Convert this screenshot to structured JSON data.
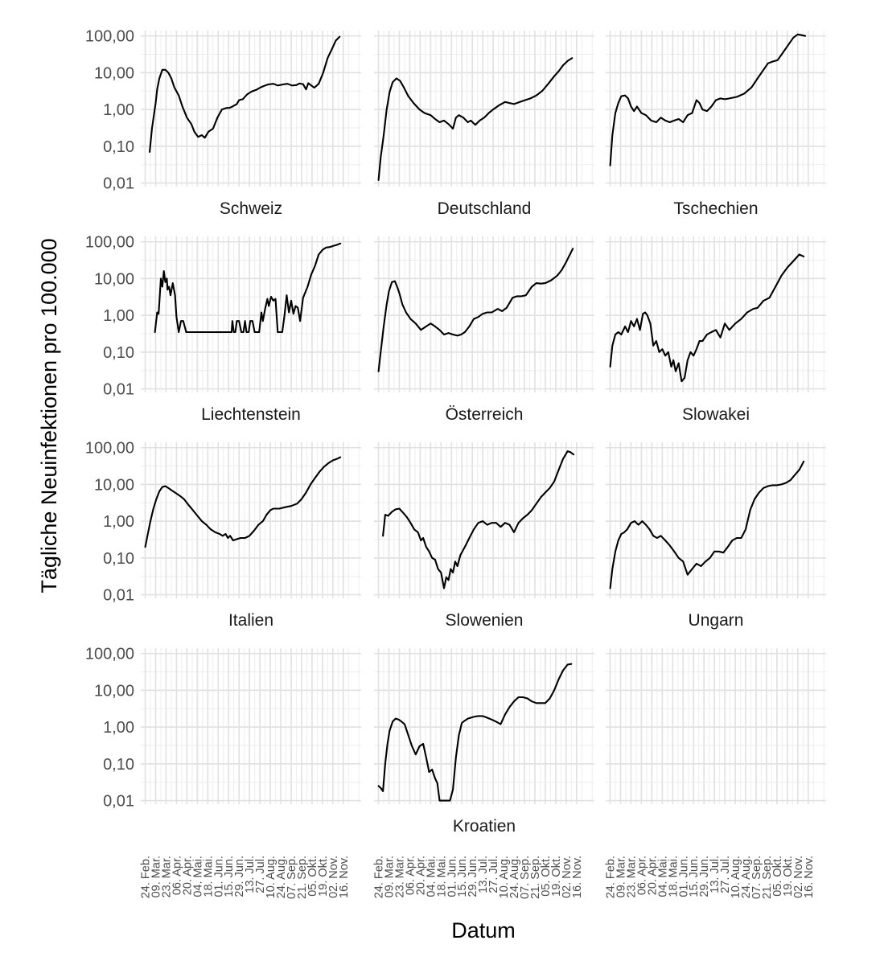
{
  "chart_data": {
    "type": "line",
    "facet_layout": "3 columns x 4 rows, facet labels below each panel",
    "ylabel": "Tägliche Neuinfektionen pro 100.000",
    "xlabel": "Datum",
    "y_scale": "log10",
    "ylim": [
      0.008,
      140
    ],
    "y_ticks": [
      0.01,
      0.1,
      1,
      10,
      100
    ],
    "y_tick_labels": [
      "0,01",
      "0,10",
      "1,00",
      "10,00",
      "100,00"
    ],
    "x_range_days": [
      -6,
      290
    ],
    "x_ticks_days": [
      0,
      14,
      28,
      42,
      56,
      70,
      84,
      98,
      112,
      126,
      140,
      154,
      168,
      182,
      196,
      210,
      224,
      238,
      252,
      266
    ],
    "x_tick_labels": [
      "24. Feb.",
      "09. Mar.",
      "23. Mar.",
      "06. Apr.",
      "20. Apr.",
      "04. Mai.",
      "18. Mai.",
      "01. Jun.",
      "15. Jun.",
      "29. Jun.",
      "13. Jul.",
      "27. Jul.",
      "10. Aug.",
      "24. Aug.",
      "07. Sep.",
      "21. Sep.",
      "05. Okt.",
      "19. Okt.",
      "02. Nov.",
      "16. Nov."
    ],
    "x_note": "x values are days since 24. Feb.",
    "grid": true,
    "series": [
      {
        "name": "Schweiz",
        "x": [
          6,
          9,
          12,
          14,
          16,
          19,
          23,
          27,
          31,
          35,
          39,
          45,
          50,
          56,
          62,
          66,
          71,
          76,
          80,
          85,
          91,
          97,
          103,
          109,
          113,
          117,
          123,
          126,
          131,
          137,
          143,
          149,
          155,
          160,
          165,
          172,
          178,
          185,
          191,
          197,
          203,
          207,
          212,
          216,
          219,
          223,
          227,
          233,
          239,
          245,
          251,
          256,
          261
        ],
        "y": [
          0.07,
          0.3,
          0.8,
          1.5,
          3.5,
          7,
          12,
          12,
          10,
          7,
          4,
          2.4,
          1.2,
          0.6,
          0.4,
          0.25,
          0.18,
          0.2,
          0.17,
          0.25,
          0.3,
          0.6,
          1,
          1.1,
          1.1,
          1.2,
          1.4,
          1.8,
          1.9,
          2.6,
          3.1,
          3.4,
          4,
          4.4,
          4.8,
          5,
          4.5,
          4.8,
          5,
          4.5,
          4.6,
          5.1,
          4.9,
          3.5,
          5.2,
          4.5,
          3.9,
          5,
          10,
          25,
          45,
          75,
          95
        ]
      },
      {
        "name": "Deutschland",
        "x": [
          0,
          3,
          7,
          11,
          15,
          19,
          24,
          29,
          34,
          40,
          47,
          55,
          62,
          70,
          76,
          82,
          88,
          94,
          100,
          104,
          108,
          114,
          120,
          124,
          130,
          136,
          142,
          148,
          154,
          162,
          170,
          176,
          182,
          190,
          197,
          204,
          212,
          220,
          228,
          236,
          242,
          248,
          254,
          260
        ],
        "y": [
          0.012,
          0.05,
          0.2,
          1,
          3,
          5.5,
          7,
          6,
          4,
          2.3,
          1.5,
          1,
          0.8,
          0.7,
          0.55,
          0.45,
          0.5,
          0.4,
          0.3,
          0.6,
          0.7,
          0.6,
          0.45,
          0.5,
          0.38,
          0.5,
          0.6,
          0.8,
          1,
          1.3,
          1.6,
          1.5,
          1.4,
          1.6,
          1.8,
          2,
          2.4,
          3.2,
          5,
          8,
          11,
          16,
          21,
          25
        ]
      },
      {
        "name": "Tschechien",
        "x": [
          0,
          3,
          7,
          11,
          15,
          20,
          24,
          28,
          32,
          36,
          42,
          48,
          55,
          62,
          68,
          74,
          80,
          86,
          92,
          98,
          104,
          110,
          116,
          120,
          124,
          130,
          136,
          142,
          148,
          154,
          160,
          170,
          180,
          190,
          198,
          206,
          212,
          218,
          225,
          232,
          240,
          246,
          252,
          257,
          262
        ],
        "y": [
          0.03,
          0.2,
          0.8,
          1.5,
          2.3,
          2.4,
          2,
          1.2,
          0.9,
          1.2,
          0.8,
          0.7,
          0.5,
          0.45,
          0.6,
          0.5,
          0.45,
          0.5,
          0.55,
          0.45,
          0.7,
          0.8,
          1.8,
          1.5,
          1,
          0.9,
          1.2,
          1.8,
          2,
          1.9,
          2,
          2.2,
          2.7,
          4,
          7,
          12,
          18,
          20,
          22,
          35,
          60,
          90,
          110,
          105,
          100
        ]
      },
      {
        "name": "Liechtenstein",
        "x": [
          13,
          16,
          18,
          21,
          23,
          25,
          27,
          29,
          30,
          32,
          34,
          37,
          40,
          42,
          45,
          48,
          51,
          55,
          58,
          62,
          66,
          70,
          80,
          90,
          100,
          110,
          116,
          117,
          119,
          121,
          123,
          126,
          129,
          132,
          134,
          136,
          139,
          141,
          144,
          147,
          150,
          153,
          156,
          158,
          161,
          164,
          166,
          169,
          172,
          175,
          178,
          181,
          184,
          187,
          190,
          193,
          196,
          199,
          202,
          205,
          208,
          212,
          218,
          223,
          228,
          233,
          238,
          243,
          248,
          253,
          257,
          262
        ],
        "y": [
          0.35,
          1.2,
          1.1,
          10,
          6,
          16,
          8,
          10,
          5,
          6,
          3.5,
          7.5,
          3.5,
          0.9,
          0.35,
          0.7,
          0.7,
          0.35,
          0.35,
          0.35,
          0.35,
          0.35,
          0.35,
          0.35,
          0.35,
          0.35,
          0.35,
          0.7,
          0.35,
          0.35,
          0.7,
          0.7,
          0.35,
          0.35,
          0.7,
          0.35,
          0.35,
          0.7,
          0.7,
          0.35,
          0.35,
          0.35,
          1.2,
          0.7,
          1.5,
          2.8,
          1.8,
          3.2,
          2.5,
          2.8,
          0.35,
          0.35,
          0.35,
          1,
          3.5,
          1.2,
          2.5,
          1.1,
          1.8,
          1.6,
          0.7,
          3,
          6,
          13,
          22,
          45,
          60,
          70,
          72,
          78,
          82,
          90
        ]
      },
      {
        "name": "Österreich",
        "x": [
          0,
          3,
          7,
          11,
          14,
          18,
          22,
          25,
          28,
          32,
          37,
          43,
          50,
          57,
          64,
          70,
          76,
          82,
          88,
          94,
          100,
          106,
          111,
          116,
          122,
          128,
          134,
          140,
          146,
          152,
          160,
          166,
          172,
          180,
          186,
          192,
          198,
          206,
          212,
          218,
          224,
          232,
          240,
          246,
          252,
          257,
          261
        ],
        "y": [
          0.03,
          0.1,
          0.5,
          2,
          4.5,
          8,
          8.5,
          6,
          4,
          2,
          1.2,
          0.8,
          0.6,
          0.4,
          0.5,
          0.6,
          0.5,
          0.4,
          0.3,
          0.33,
          0.3,
          0.28,
          0.3,
          0.35,
          0.5,
          0.8,
          0.9,
          1.1,
          1.2,
          1.2,
          1.5,
          1.3,
          1.6,
          3,
          3.3,
          3.3,
          3.5,
          6,
          7.5,
          7.3,
          7.5,
          9,
          12,
          17,
          28,
          45,
          65
        ]
      },
      {
        "name": "Slowakei",
        "x": [
          0,
          3,
          7,
          11,
          15,
          20,
          24,
          28,
          32,
          36,
          40,
          44,
          47,
          50,
          54,
          58,
          62,
          66,
          70,
          74,
          78,
          82,
          85,
          88,
          92,
          96,
          100,
          104,
          108,
          112,
          116,
          120,
          124,
          130,
          136,
          142,
          148,
          154,
          160,
          168,
          176,
          184,
          192,
          198,
          206,
          214,
          222,
          230,
          238,
          246,
          254,
          260
        ],
        "y": [
          0.04,
          0.15,
          0.3,
          0.35,
          0.3,
          0.5,
          0.35,
          0.7,
          0.5,
          0.8,
          0.4,
          1.1,
          1.2,
          1,
          0.6,
          0.15,
          0.2,
          0.1,
          0.12,
          0.08,
          0.1,
          0.04,
          0.06,
          0.03,
          0.05,
          0.016,
          0.02,
          0.06,
          0.1,
          0.08,
          0.12,
          0.2,
          0.2,
          0.3,
          0.35,
          0.4,
          0.25,
          0.6,
          0.4,
          0.6,
          0.8,
          1.2,
          1.5,
          1.6,
          2.5,
          3,
          6,
          12,
          20,
          30,
          45,
          40
        ]
      },
      {
        "name": "Italien",
        "x": [
          0,
          3,
          7,
          11,
          15,
          19,
          23,
          27,
          31,
          35,
          40,
          46,
          52,
          58,
          64,
          70,
          76,
          82,
          88,
          94,
          100,
          104,
          108,
          111,
          114,
          118,
          122,
          128,
          134,
          140,
          146,
          152,
          158,
          163,
          168,
          172,
          180,
          188,
          196,
          204,
          210,
          216,
          222,
          228,
          234,
          240,
          246,
          252,
          258,
          262
        ],
        "y": [
          0.2,
          0.4,
          1,
          2.2,
          4,
          6.5,
          8.5,
          9,
          8,
          7,
          6,
          5,
          4,
          2.8,
          2,
          1.4,
          1,
          0.8,
          0.6,
          0.5,
          0.45,
          0.4,
          0.45,
          0.35,
          0.4,
          0.3,
          0.32,
          0.35,
          0.35,
          0.4,
          0.55,
          0.8,
          1,
          1.5,
          2,
          2.2,
          2.2,
          2.4,
          2.6,
          3,
          4,
          6,
          10,
          15,
          22,
          30,
          38,
          45,
          50,
          55
        ]
      },
      {
        "name": "Slowenien",
        "x": [
          6,
          9,
          13,
          18,
          23,
          28,
          33,
          38,
          43,
          48,
          53,
          57,
          60,
          64,
          68,
          72,
          76,
          80,
          84,
          88,
          91,
          94,
          97,
          100,
          103,
          106,
          110,
          116,
          122,
          128,
          134,
          140,
          146,
          152,
          158,
          164,
          170,
          176,
          182,
          188,
          194,
          200,
          206,
          212,
          218,
          224,
          230,
          236,
          242,
          248,
          254,
          258,
          262
        ],
        "y": [
          0.4,
          1.5,
          1.4,
          1.8,
          2.1,
          2.2,
          1.7,
          1.3,
          0.9,
          0.6,
          0.5,
          0.3,
          0.35,
          0.2,
          0.15,
          0.1,
          0.09,
          0.05,
          0.04,
          0.015,
          0.03,
          0.025,
          0.05,
          0.04,
          0.08,
          0.06,
          0.12,
          0.2,
          0.35,
          0.6,
          0.9,
          1,
          0.8,
          0.9,
          0.9,
          0.7,
          0.9,
          0.8,
          0.5,
          0.9,
          1.2,
          1.5,
          2,
          3,
          4.5,
          6,
          8,
          12,
          25,
          50,
          80,
          75,
          65
        ]
      },
      {
        "name": "Ungarn",
        "x": [
          0,
          3,
          7,
          11,
          15,
          19,
          23,
          28,
          33,
          38,
          43,
          48,
          53,
          58,
          63,
          68,
          74,
          80,
          86,
          92,
          98,
          104,
          110,
          116,
          122,
          128,
          134,
          140,
          146,
          152,
          158,
          164,
          170,
          176,
          182,
          188,
          194,
          200,
          206,
          212,
          218,
          224,
          230,
          236,
          242,
          248,
          254,
          260
        ],
        "y": [
          0.015,
          0.05,
          0.15,
          0.3,
          0.45,
          0.5,
          0.6,
          0.9,
          1,
          0.8,
          1,
          0.8,
          0.6,
          0.4,
          0.35,
          0.4,
          0.3,
          0.22,
          0.15,
          0.1,
          0.08,
          0.035,
          0.05,
          0.07,
          0.06,
          0.08,
          0.1,
          0.15,
          0.15,
          0.14,
          0.2,
          0.3,
          0.35,
          0.35,
          0.6,
          2,
          4,
          6,
          8,
          9,
          9.5,
          9.5,
          10,
          11,
          13,
          18,
          25,
          42
        ]
      },
      {
        "name": "Kroatien",
        "x": [
          0,
          3,
          6,
          9,
          12,
          15,
          19,
          23,
          27,
          31,
          35,
          40,
          45,
          50,
          55,
          60,
          64,
          68,
          72,
          76,
          79,
          82,
          85,
          88,
          92,
          96,
          100,
          104,
          108,
          112,
          116,
          120,
          124,
          128,
          134,
          140,
          146,
          152,
          158,
          164,
          170,
          176,
          182,
          188,
          194,
          200,
          206,
          212,
          218,
          224,
          230,
          236,
          242,
          248,
          254,
          259
        ],
        "y": [
          0.025,
          0.022,
          0.018,
          0.1,
          0.35,
          0.8,
          1.4,
          1.7,
          1.6,
          1.4,
          1.2,
          0.6,
          0.3,
          0.18,
          0.3,
          0.35,
          0.15,
          0.06,
          0.07,
          0.04,
          0.03,
          0.01,
          0.01,
          0.01,
          0.01,
          0.01,
          0.02,
          0.15,
          0.6,
          1.3,
          1.5,
          1.7,
          1.8,
          1.9,
          2,
          2,
          1.8,
          1.6,
          1.4,
          1.2,
          2.2,
          3.5,
          5,
          6.5,
          6.5,
          6,
          5,
          4.5,
          4.5,
          4.5,
          6,
          10,
          20,
          35,
          50,
          52
        ]
      }
    ],
    "facet_labels": [
      "Schweiz",
      "Deutschland",
      "Tschechien",
      "Liechtenstein",
      "Österreich",
      "Slowakei",
      "Italien",
      "Slowenien",
      "Ungarn",
      "",
      "Kroatien",
      ""
    ]
  }
}
